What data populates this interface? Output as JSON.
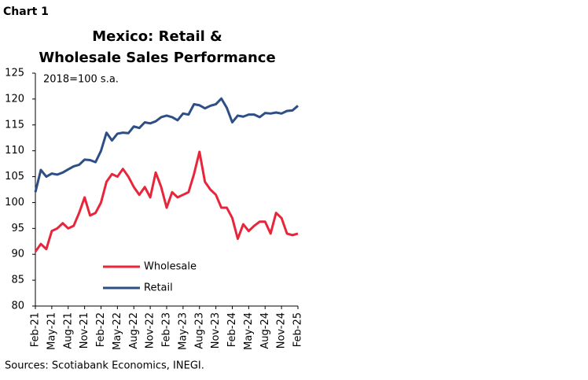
{
  "chart_label": "Chart 1",
  "source": "Sources: Scotiabank Economics, INEGI.",
  "chart_data": {
    "type": "line",
    "title": [
      "Mexico: Retail &",
      "Wholesale Sales Performance"
    ],
    "annotation": "2018=100 s.a.",
    "categories": [
      "Feb-21",
      null,
      null,
      "May-21",
      null,
      null,
      "Aug-21",
      null,
      null,
      "Nov-21",
      null,
      null,
      "Feb-22",
      null,
      null,
      "May-22",
      null,
      null,
      "Aug-22",
      null,
      null,
      "Nov-22",
      null,
      null,
      "Feb-23",
      null,
      null,
      "May-23",
      null,
      null,
      "Aug-23",
      null,
      null,
      "Nov-23",
      null,
      null,
      "Feb-24",
      null,
      null,
      "May-24",
      null,
      null,
      "Aug-24",
      null,
      null,
      "Nov-24",
      null,
      null,
      "Feb-25"
    ],
    "series": [
      {
        "name": "Wholesale",
        "color": "#e8253b",
        "values": [
          90.5,
          92,
          91,
          94.5,
          95,
          96,
          95,
          95.5,
          98,
          101,
          97.5,
          98,
          100,
          104,
          105.5,
          105,
          106.5,
          105,
          103,
          101.5,
          103,
          101,
          105.8,
          103,
          99,
          102,
          101,
          101.5,
          102,
          105.5,
          109.8,
          104,
          102.5,
          101.5,
          99,
          99,
          97,
          93,
          95.8,
          94.5,
          95.5,
          96.3,
          96.3,
          94,
          98,
          97,
          94,
          93.7,
          94
        ]
      },
      {
        "name": "Retail",
        "color": "#2d4f85",
        "values": [
          102,
          106.3,
          105,
          105.6,
          105.4,
          105.8,
          106.4,
          107,
          107.3,
          108.3,
          108.2,
          107.8,
          110,
          113.5,
          112,
          113.3,
          113.5,
          113.4,
          114.7,
          114.4,
          115.5,
          115.3,
          115.7,
          116.5,
          116.8,
          116.5,
          115.9,
          117.2,
          117,
          119,
          118.8,
          118.2,
          118.7,
          119,
          120.1,
          118.3,
          115.5,
          116.8,
          116.6,
          117,
          117,
          116.5,
          117.3,
          117.2,
          117.4,
          117.2,
          117.7,
          117.8,
          118.7
        ]
      }
    ],
    "ylim": [
      80,
      125
    ],
    "yticks": [
      80,
      85,
      90,
      95,
      100,
      105,
      110,
      115,
      120,
      125
    ]
  }
}
